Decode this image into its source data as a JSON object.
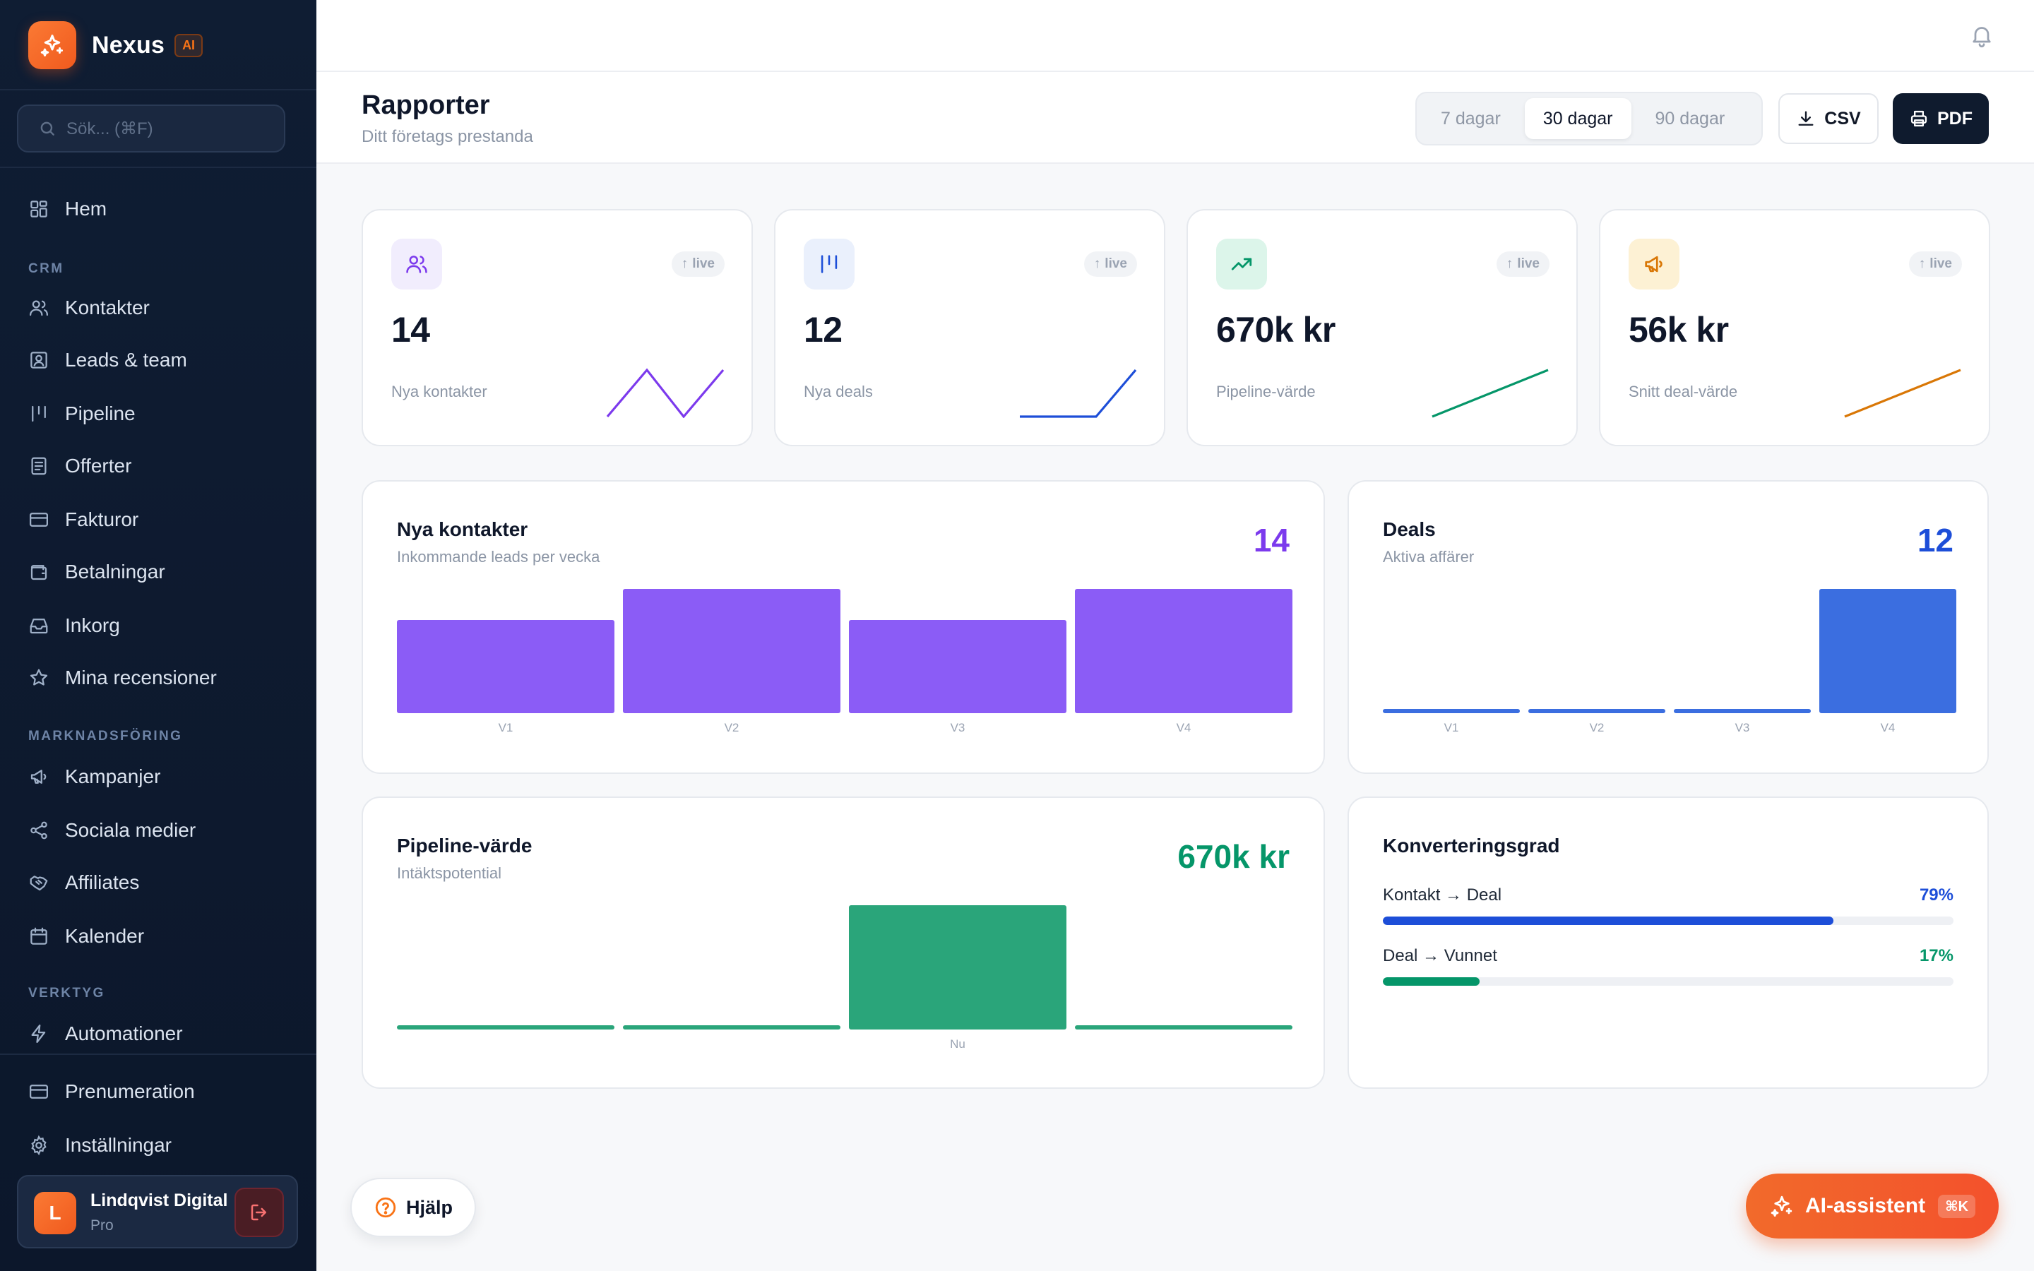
{
  "brand": {
    "name": "Nexus",
    "badge": "AI"
  },
  "search": {
    "placeholder": "Sök... (⌘F)"
  },
  "nav": {
    "home": "Hem",
    "section_crm": "CRM",
    "crm_items": [
      "Kontakter",
      "Leads & team",
      "Pipeline",
      "Offerter",
      "Fakturor",
      "Betalningar",
      "Inkorg",
      "Mina recensioner"
    ],
    "section_marketing": "MARKNADSFÖRING",
    "marketing_items": [
      "Kampanjer",
      "Sociala medier",
      "Affiliates",
      "Kalender"
    ],
    "section_tools": "VERKTYG",
    "tools_items": [
      "Automationer"
    ],
    "bottom_items": [
      "Prenumeration",
      "Inställningar"
    ]
  },
  "user": {
    "initial": "L",
    "name": "Lindqvist Digital",
    "plan": "Pro"
  },
  "header": {
    "title": "Rapporter",
    "subtitle": "Ditt företags prestanda",
    "ranges": [
      "7 dagar",
      "30 dagar",
      "90 dagar"
    ],
    "active_range": "30 dagar",
    "csv_label": "CSV",
    "pdf_label": "PDF"
  },
  "stats": [
    {
      "value": "14",
      "label": "Nya kontakter",
      "badge": "live",
      "color": "#7c3aed",
      "icon": "users-icon"
    },
    {
      "value": "12",
      "label": "Nya deals",
      "badge": "live",
      "color": "#1d4ed8",
      "icon": "pipeline-icon"
    },
    {
      "value": "670k kr",
      "label": "Pipeline-värde",
      "badge": "live",
      "color": "#059669",
      "icon": "trending-up-icon"
    },
    {
      "value": "56k kr",
      "label": "Snitt deal-värde",
      "badge": "live",
      "color": "#d97706",
      "icon": "megaphone-icon"
    }
  ],
  "charts": {
    "contacts": {
      "title": "Nya kontakter",
      "subtitle": "Inkommande leads per vecka",
      "big": "14",
      "color": "#7c3aed"
    },
    "deals": {
      "title": "Deals",
      "subtitle": "Aktiva affärer",
      "big": "12",
      "color": "#1d4ed8"
    },
    "pipeline": {
      "title": "Pipeline-värde",
      "subtitle": "Intäktspotential",
      "big": "670k kr",
      "color": "#059669"
    },
    "conversion": {
      "title": "Konverteringsgrad",
      "rows": [
        {
          "label": "Kontakt → Deal",
          "pct": "79%",
          "value": 0.79,
          "color": "#1d4ed8"
        },
        {
          "label": "Deal → Vunnet",
          "pct": "17%",
          "value": 0.17,
          "color": "#059669"
        }
      ]
    }
  },
  "chart_data": [
    {
      "type": "bar",
      "title": "Nya kontakter",
      "categories": [
        "V1",
        "V2",
        "V3",
        "V4"
      ],
      "values": [
        3,
        4,
        3,
        4
      ],
      "color": "#8b5cf6"
    },
    {
      "type": "bar",
      "title": "Deals",
      "categories": [
        "V1",
        "V2",
        "V3",
        "V4"
      ],
      "values": [
        0,
        0,
        0,
        12
      ],
      "color": "#3b6ee0"
    },
    {
      "type": "bar",
      "title": "Pipeline-värde",
      "categories": [
        "",
        "",
        "Nu",
        ""
      ],
      "values": [
        0,
        0,
        670,
        0
      ],
      "color": "#2aa57a"
    }
  ],
  "help": {
    "label": "Hjälp"
  },
  "ai": {
    "label": "AI-assistent",
    "shortcut": "⌘K"
  }
}
